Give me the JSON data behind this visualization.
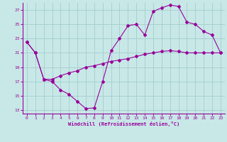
{
  "xlabel": "Windchill (Refroidissement éolien,°C)",
  "bg_color": "#c8e8e8",
  "line_color": "#990099",
  "grid_color": "#a8d0d0",
  "line1_x": [
    0,
    1,
    2,
    3,
    4,
    5,
    6,
    7,
    8,
    9,
    10,
    11,
    12,
    13,
    14,
    15,
    16,
    17,
    18,
    19,
    20,
    21,
    22,
    23
  ],
  "line1_y": [
    22.5,
    21.0,
    17.3,
    17.3,
    17.8,
    18.2,
    18.5,
    19.0,
    19.2,
    19.5,
    19.8,
    20.0,
    20.2,
    20.5,
    20.8,
    21.0,
    21.2,
    21.3,
    21.2,
    21.0,
    21.0,
    21.0,
    21.0,
    21.0
  ],
  "line2_x": [
    0,
    1,
    2,
    3,
    4,
    5,
    6,
    7,
    8,
    9,
    10,
    11,
    12,
    13,
    14,
    15,
    16,
    17,
    18,
    19,
    20,
    21,
    22,
    23
  ],
  "line2_y": [
    22.5,
    21.0,
    17.3,
    17.0,
    15.8,
    15.2,
    14.2,
    13.2,
    13.3,
    17.0,
    21.3,
    23.0,
    24.8,
    25.0,
    23.5,
    26.8,
    27.3,
    27.7,
    27.5,
    25.3,
    25.0,
    24.0,
    23.5,
    21.0
  ],
  "xlim": [
    -0.5,
    23.5
  ],
  "ylim": [
    12.5,
    28.0
  ],
  "yticks": [
    13,
    15,
    17,
    19,
    21,
    23,
    25,
    27
  ],
  "xticks": [
    0,
    1,
    2,
    3,
    4,
    5,
    6,
    7,
    8,
    9,
    10,
    11,
    12,
    13,
    14,
    15,
    16,
    17,
    18,
    19,
    20,
    21,
    22,
    23
  ]
}
